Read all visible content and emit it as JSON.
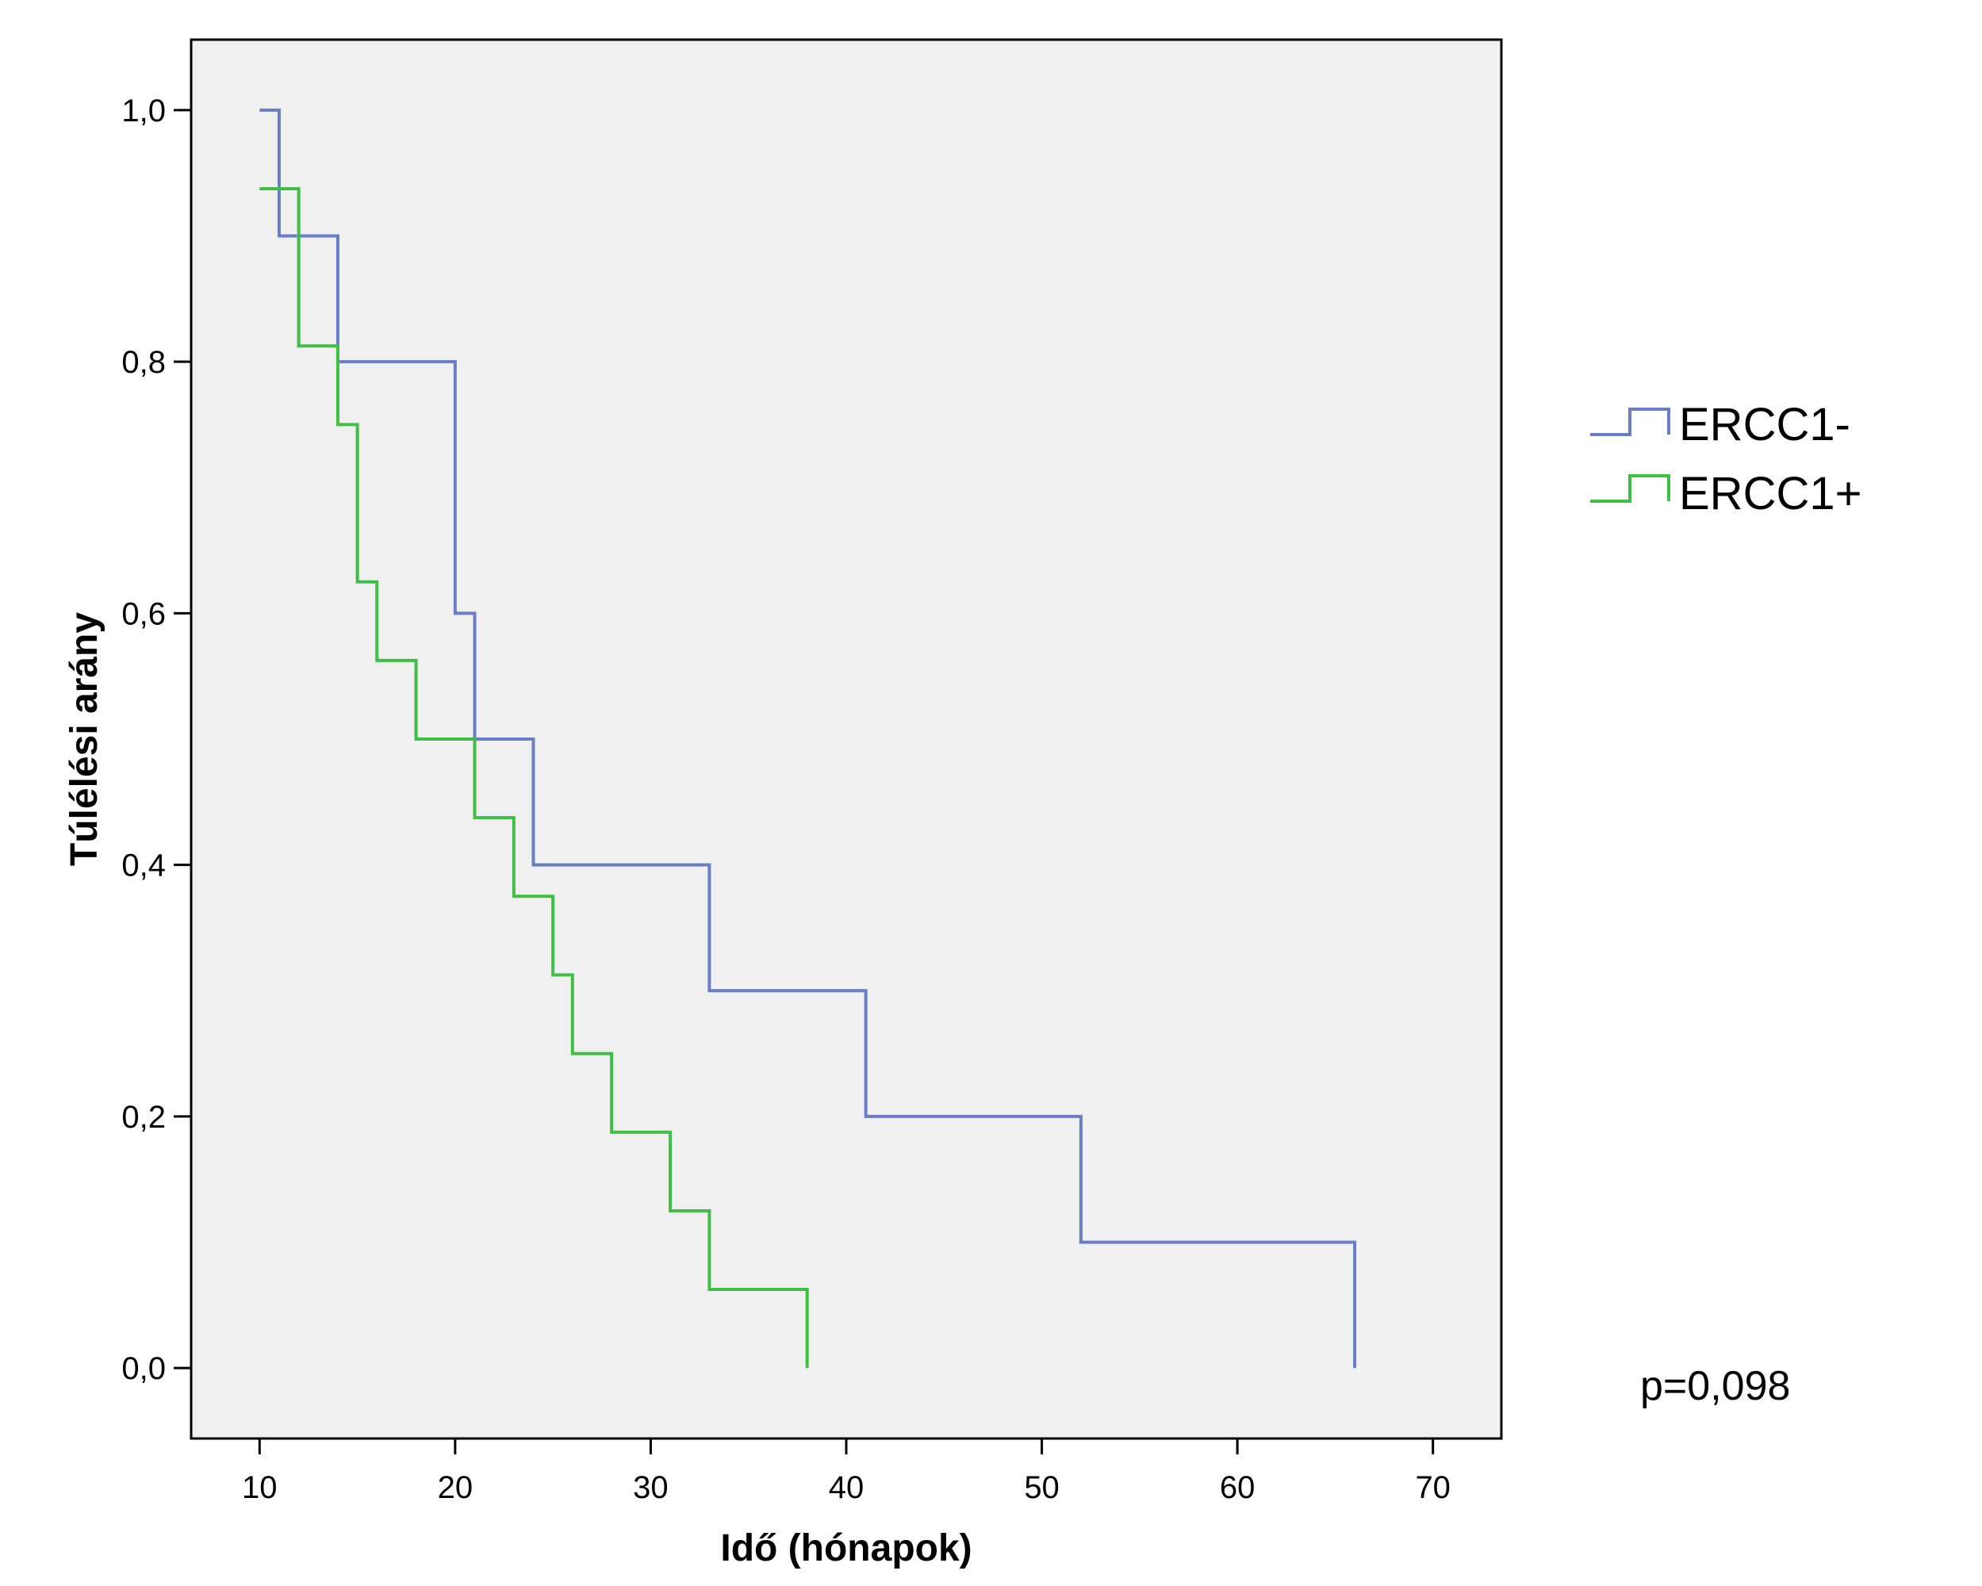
{
  "chart_data": {
    "type": "line",
    "subtype": "kaplan-meier-step",
    "title": "",
    "xlabel": "Idő (hónapok)",
    "ylabel": "Túlélési arány",
    "xlim": [
      6.5,
      73.5
    ],
    "ylim": [
      -0.056,
      1.056
    ],
    "xticks": [
      10,
      20,
      30,
      40,
      50,
      60,
      70
    ],
    "xtick_labels": [
      "10",
      "20",
      "30",
      "40",
      "50",
      "60",
      "70"
    ],
    "yticks": [
      0.0,
      0.2,
      0.4,
      0.6,
      0.8,
      1.0
    ],
    "ytick_labels": [
      "0,0",
      "0,2",
      "0,4",
      "0,6",
      "0,8",
      "1,0"
    ],
    "grid": false,
    "legend_position": "right",
    "annotation": "p=0,098",
    "series": [
      {
        "name": "ERCC1-",
        "color": "#6a7ec6",
        "x": [
          10,
          11,
          14,
          20,
          21,
          24,
          33,
          41,
          52,
          66
        ],
        "y": [
          1.0,
          0.9,
          0.8,
          0.6,
          0.5,
          0.4,
          0.3,
          0.2,
          0.1,
          0.0
        ]
      },
      {
        "name": "ERCC1+",
        "color": "#3fbf46",
        "x": [
          10,
          12,
          14,
          15,
          16,
          18,
          21,
          23,
          25,
          26,
          28,
          31,
          33,
          38
        ],
        "y": [
          0.9375,
          0.8125,
          0.75,
          0.625,
          0.5625,
          0.5,
          0.4375,
          0.375,
          0.3125,
          0.25,
          0.1875,
          0.125,
          0.0625,
          0.0
        ]
      }
    ]
  },
  "colors": {
    "plot_background": "#f0f0f0",
    "frame": "#000000"
  }
}
